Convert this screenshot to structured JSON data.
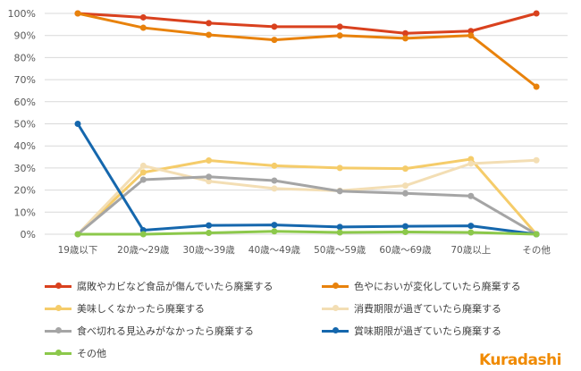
{
  "chart_data": {
    "type": "line",
    "title": "",
    "xlabel": "",
    "ylabel": "",
    "categories": [
      "19歳以下",
      "20歳～29歳",
      "30歳～39歳",
      "40歳～49歳",
      "50歳～59歳",
      "60歳～69歳",
      "70歳以上",
      "その他"
    ],
    "ylim": [
      0,
      100
    ],
    "yticks": [
      "0%",
      "10%",
      "20%",
      "30%",
      "40%",
      "50%",
      "60%",
      "70%",
      "80%",
      "90%",
      "100%"
    ],
    "grid": true,
    "legend_position": "bottom",
    "series": [
      {
        "name": "腐敗やカビなど食品が傷んでいたら廃棄する",
        "color": "#d9411e",
        "values": [
          100,
          98.2,
          95.6,
          94,
          94,
          91,
          92,
          100
        ]
      },
      {
        "name": "色やにおいが変化していたら廃棄する",
        "color": "#e8820c",
        "values": [
          100,
          93.5,
          90.3,
          88,
          90,
          88.7,
          90,
          66.8
        ]
      },
      {
        "name": "美味しくなかったら廃棄する",
        "color": "#f5cc6a",
        "values": [
          0,
          28,
          33.4,
          31,
          30,
          29.7,
          34,
          0
        ]
      },
      {
        "name": "消費期限が過ぎていたら廃棄する",
        "color": "#f3deb4",
        "values": [
          0,
          31,
          24,
          20.7,
          19.7,
          22,
          32,
          33.5
        ]
      },
      {
        "name": "食べ切れる見込みがなかったら廃棄する",
        "color": "#a5a5a5",
        "values": [
          0,
          24.7,
          26,
          24.3,
          19.5,
          18.5,
          17.3,
          0
        ]
      },
      {
        "name": "賞味期限が過ぎていたら廃棄する",
        "color": "#1567ad",
        "values": [
          50,
          1.8,
          4,
          4.2,
          3.3,
          3.6,
          3.8,
          0
        ]
      },
      {
        "name": "その他",
        "color": "#8cc84b",
        "values": [
          0,
          0,
          0.6,
          1.3,
          0.8,
          1,
          0.8,
          0
        ]
      }
    ]
  },
  "logo": "Kuradashi"
}
